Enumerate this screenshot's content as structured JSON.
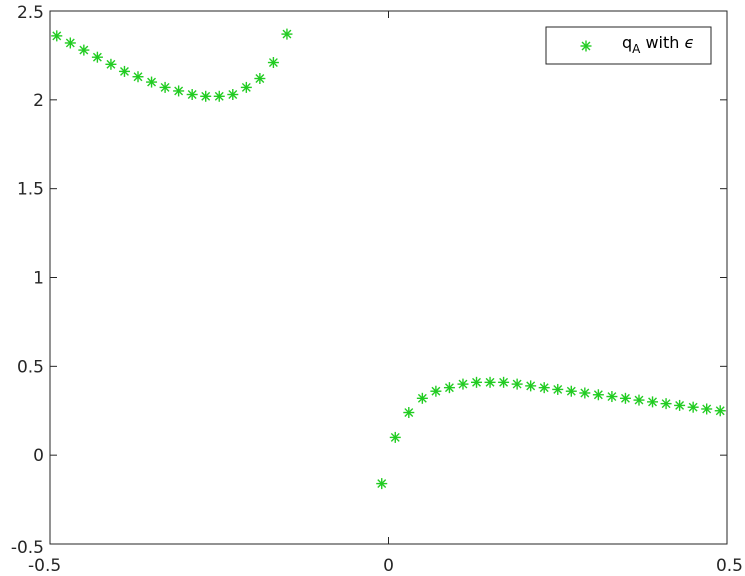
{
  "chart_data": {
    "type": "scatter",
    "title": "",
    "xlabel": "",
    "ylabel": "",
    "xlim": [
      -0.5,
      0.5
    ],
    "ylim": [
      -0.5,
      2.5
    ],
    "xticks": [
      -0.5,
      0,
      0.5
    ],
    "yticks": [
      -0.5,
      0,
      0.5,
      1,
      1.5,
      2,
      2.5
    ],
    "xtick_labels": [
      "-0.5",
      "0",
      "0.5"
    ],
    "ytick_labels": [
      "-0.5",
      "0",
      "0.5",
      "1",
      "1.5",
      "2",
      "2.5"
    ],
    "grid": false,
    "legend": {
      "position": "top-right",
      "label_main": "q",
      "label_sub": "A",
      "label_rest": " with ",
      "label_symbol": "ϵ"
    },
    "marker": "asterisk",
    "series": [
      {
        "color": "#22cc22",
        "x": [
          -0.49,
          -0.47,
          -0.45,
          -0.43,
          -0.41,
          -0.39,
          -0.37,
          -0.35,
          -0.33,
          -0.31,
          -0.29,
          -0.27,
          -0.25,
          -0.23,
          -0.21,
          -0.19,
          -0.17,
          -0.15,
          -0.01,
          0.01,
          0.03,
          0.05,
          0.07,
          0.09,
          0.11,
          0.13,
          0.15,
          0.17,
          0.19,
          0.21,
          0.23,
          0.25,
          0.27,
          0.29,
          0.31,
          0.33,
          0.35,
          0.37,
          0.39,
          0.41,
          0.43,
          0.45,
          0.47,
          0.49
        ],
        "y": [
          2.36,
          2.32,
          2.28,
          2.24,
          2.2,
          2.16,
          2.13,
          2.1,
          2.07,
          2.05,
          2.03,
          2.02,
          2.02,
          2.03,
          2.07,
          2.12,
          2.21,
          2.37,
          -0.16,
          0.1,
          0.24,
          0.32,
          0.36,
          0.38,
          0.4,
          0.41,
          0.41,
          0.41,
          0.4,
          0.39,
          0.38,
          0.37,
          0.36,
          0.35,
          0.34,
          0.33,
          0.32,
          0.31,
          0.3,
          0.29,
          0.28,
          0.27,
          0.26,
          0.25
        ]
      }
    ]
  }
}
